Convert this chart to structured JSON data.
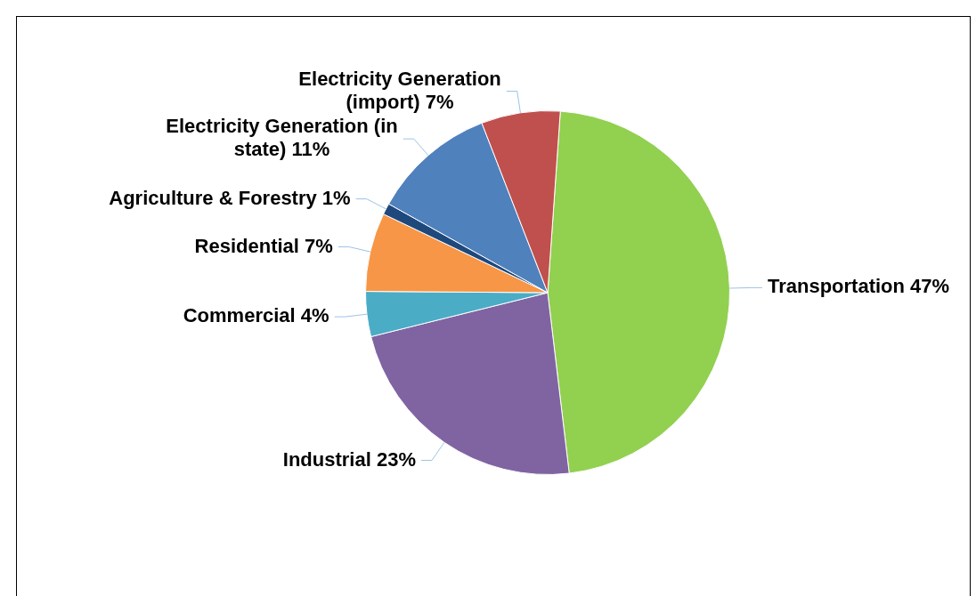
{
  "chart_data": {
    "type": "pie",
    "categories": [
      "Transportation",
      "Industrial",
      "Commercial",
      "Residential",
      "Agriculture & Forestry",
      "Electricity Generation (in state)",
      "Electricity Generation (import)"
    ],
    "values": [
      47,
      23,
      4,
      7,
      1,
      11,
      7
    ],
    "value_labels": [
      "47%",
      "23%",
      "4%",
      "7%",
      "1%",
      "11%",
      "7%"
    ],
    "colors": [
      "#92d050",
      "#8064a2",
      "#4bacc6",
      "#f79646",
      "#1f497d",
      "#4f81bd",
      "#c0504d"
    ],
    "legend": false
  }
}
